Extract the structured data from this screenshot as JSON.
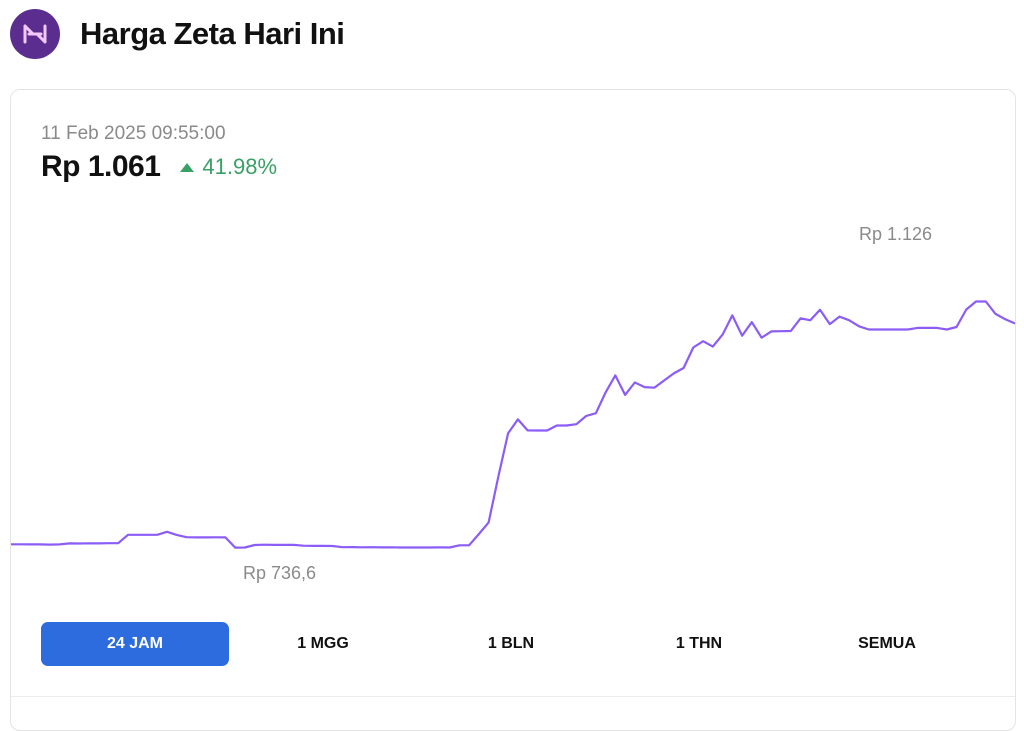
{
  "page": {
    "title": "Harga Zeta Hari Ini"
  },
  "logo": {
    "icon": "zeta-logo-icon",
    "color": "#5b2d8e"
  },
  "quote": {
    "timestamp": "11 Feb 2025 09:55:00",
    "price": "Rp 1.061",
    "change": "41.98%",
    "change_direction": "up",
    "change_color": "#3aa065"
  },
  "chart_data": {
    "type": "line",
    "title": "",
    "xlabel": "",
    "ylabel": "",
    "x_range": "24 JAM",
    "grid": false,
    "line_color": "#8b5cf6",
    "max_label": "Rp 1.126",
    "min_label": "Rp 736,6",
    "ylim": [
      736.6,
      1126
    ],
    "series": [
      {
        "values": [
          741.5,
          741.5,
          741.3,
          741.3,
          741.1,
          741.3,
          742.6,
          742.5,
          742.8,
          742.7,
          742.9,
          742.9,
          754.0,
          753.9,
          753.9,
          754.0,
          757.9,
          753.8,
          750.8,
          750.5,
          750.5,
          750.7,
          750.5,
          737.1,
          737.3,
          740.6,
          740.9,
          740.7,
          740.7,
          740.7,
          739.6,
          739.4,
          739.4,
          739.2,
          737.6,
          737.8,
          737.5,
          737.6,
          737.4,
          737.5,
          737.3,
          737.3,
          737.3,
          737.3,
          737.4,
          737.3,
          740.1,
          740.2,
          755.0,
          770.1,
          830.9,
          887.6,
          905.8,
          891.3,
          891.2,
          891.2,
          897.8,
          897.7,
          899.4,
          910.2,
          914.0,
          941.3,
          963.6,
          938.0,
          954.3,
          948.3,
          947.5,
          957.0,
          966.3,
          973.4,
          1000.4,
          1008.6,
          1001.5,
          1017.3,
          1042.6,
          1015.9,
          1033.8,
          1013.3,
          1021.6,
          1021.8,
          1022.1,
          1038.8,
          1036.2,
          1050.0,
          1031.2,
          1041.0,
          1036.2,
          1028.3,
          1024.1,
          1024.1,
          1024.1,
          1024.1,
          1024.1,
          1026.2,
          1026.2,
          1026.2,
          1024.1,
          1027.3,
          1050.3,
          1060.9,
          1060.9,
          1044.6,
          1037.4,
          1032.0
        ]
      }
    ]
  },
  "tabs": [
    {
      "label": "24 JAM",
      "active": true
    },
    {
      "label": "1 MGG",
      "active": false
    },
    {
      "label": "1 BLN",
      "active": false
    },
    {
      "label": "1 THN",
      "active": false
    },
    {
      "label": "SEMUA",
      "active": false
    }
  ],
  "colors": {
    "active_tab": "#2d6cdf",
    "muted_text": "#8a8a8a"
  }
}
